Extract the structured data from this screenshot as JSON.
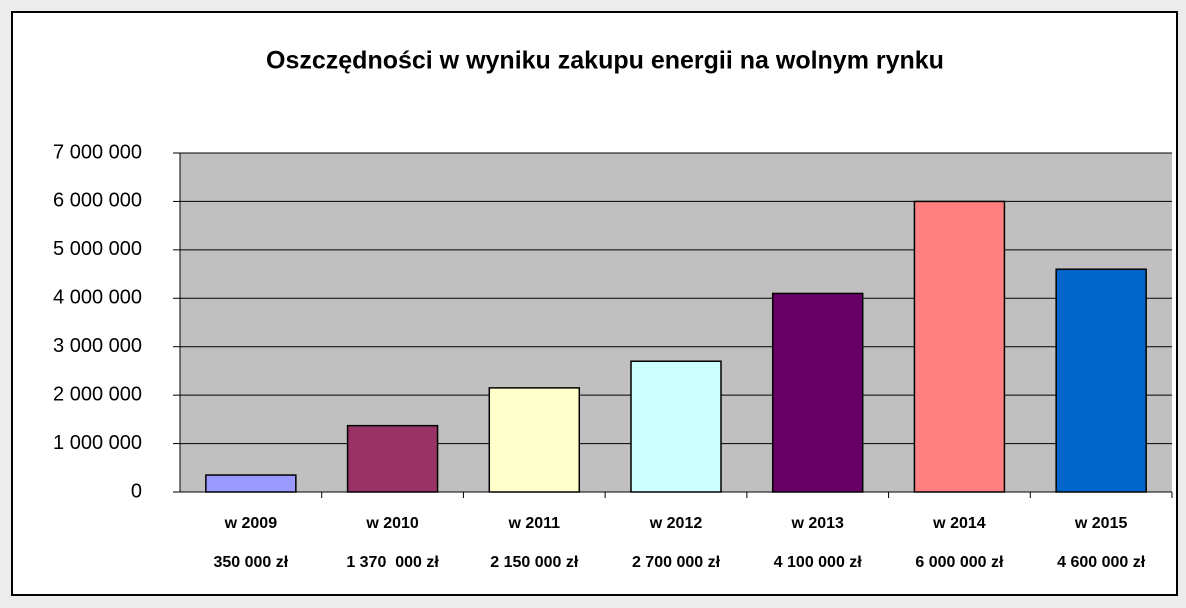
{
  "chart_data": {
    "type": "bar",
    "title": "Oszczędności w wyniku zakupu energii na wolnym rynku",
    "categories": [
      "w 2009",
      "w 2010",
      "w 2011",
      "w 2012",
      "w 2013",
      "w 2014",
      "w 2015"
    ],
    "values": [
      350000,
      1370000,
      2150000,
      2700000,
      4100000,
      6000000,
      4600000
    ],
    "value_labels": [
      "350 000 zł",
      "1 370  000 zł",
      "2 150 000 zł",
      "2 700 000 zł",
      "4 100 000 zł",
      "6 000 000 zł",
      "4 600 000 zł"
    ],
    "colors": [
      "#9999ff",
      "#993366",
      "#ffffcc",
      "#ccffff",
      "#660066",
      "#ff8080",
      "#0066cc"
    ],
    "ylim": [
      0,
      7000000
    ],
    "yticks": [
      0,
      {
        "value": 1000000,
        "label": "1 000 000"
      },
      {
        "value": 2000000,
        "label": "2 000 000"
      },
      {
        "value": 3000000,
        "label": "3 000 000"
      },
      {
        "value": 4000000,
        "label": "4 000 000"
      },
      {
        "value": 5000000,
        "label": "5 000 000"
      },
      {
        "value": 6000000,
        "label": "6 000 000"
      },
      {
        "value": 7000000,
        "label": "7 000 000"
      }
    ],
    "grid": true
  }
}
